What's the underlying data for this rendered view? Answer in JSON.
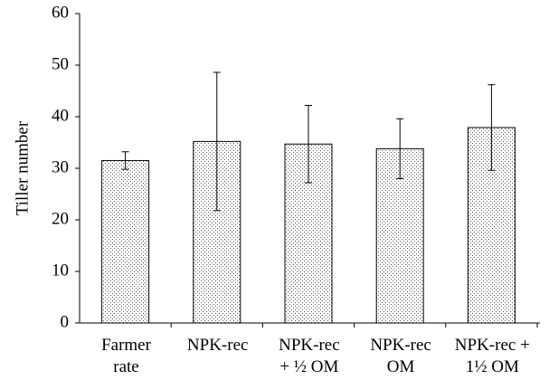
{
  "chart_data": {
    "type": "bar",
    "y_label": "Tiller number",
    "categories": [
      "Farmer\nrate",
      "NPK-rec",
      "NPK-rec\n+ ½ OM",
      "NPK-rec\nOM",
      "NPK-rec +\n1½ OM"
    ],
    "values": [
      31.5,
      35.2,
      34.7,
      33.8,
      37.9
    ],
    "errors": [
      1.7,
      13.4,
      7.5,
      5.8,
      8.3
    ],
    "color": "#000000",
    "ylim": [
      0,
      60
    ],
    "yticks": [
      0,
      10,
      20,
      30,
      40,
      50,
      60
    ]
  }
}
